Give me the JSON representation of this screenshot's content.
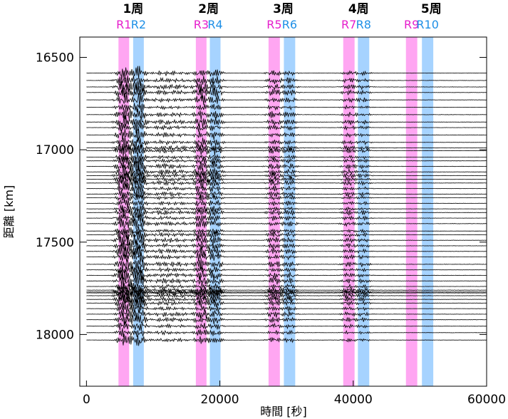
{
  "chart_data": {
    "type": "line",
    "title": "",
    "xlabel": "時間 [秒]",
    "ylabel": "距離 [km]",
    "xlim": [
      -1000,
      60000
    ],
    "ylim": [
      18280,
      16390
    ],
    "x_ticks": [
      0,
      20000,
      40000,
      60000
    ],
    "y_ticks": [
      16500,
      17000,
      17500,
      18000
    ],
    "y_inverted": true,
    "grid": false,
    "legend": "none",
    "orbit_labels": [
      {
        "label": "1周",
        "x": 7000
      },
      {
        "label": "2周",
        "x": 18300
      },
      {
        "label": "3周",
        "x": 29500
      },
      {
        "label": "4周",
        "x": 40800
      },
      {
        "label": "5周",
        "x": 51700
      }
    ],
    "bands": [
      {
        "label": "R1",
        "x_start": 4800,
        "x_end": 6400,
        "color": "#ff88ee"
      },
      {
        "label": "R2",
        "x_start": 7000,
        "x_end": 8600,
        "color": "#88c4ff"
      },
      {
        "label": "R3",
        "x_start": 16400,
        "x_end": 18000,
        "color": "#ff88ee"
      },
      {
        "label": "R4",
        "x_start": 18500,
        "x_end": 20100,
        "color": "#88c4ff"
      },
      {
        "label": "R5",
        "x_start": 27300,
        "x_end": 29000,
        "color": "#ff88ee"
      },
      {
        "label": "R6",
        "x_start": 29600,
        "x_end": 31300,
        "color": "#88c4ff"
      },
      {
        "label": "R7",
        "x_start": 38500,
        "x_end": 40200,
        "color": "#ff88ee"
      },
      {
        "label": "R8",
        "x_start": 40700,
        "x_end": 42400,
        "color": "#88c4ff"
      },
      {
        "label": "R9",
        "x_start": 47900,
        "x_end": 49600,
        "color": "#ff88ee"
      },
      {
        "label": "R10",
        "x_start": 50300,
        "x_end": 52000,
        "color": "#88c4ff"
      }
    ],
    "trace_x_range": [
      0,
      60000
    ],
    "trace_distances": [
      16585,
      16625,
      16660,
      16690,
      16730,
      16770,
      16810,
      16850,
      16880,
      16920,
      16960,
      16990,
      17005,
      17040,
      17060,
      17090,
      17120,
      17140,
      17160,
      17180,
      17210,
      17240,
      17260,
      17290,
      17320,
      17340,
      17370,
      17400,
      17440,
      17460,
      17490,
      17520,
      17550,
      17580,
      17620,
      17650,
      17680,
      17710,
      17740,
      17760,
      17770,
      17775,
      17790,
      17810,
      17830,
      17860,
      17890,
      17920,
      17955,
      17990,
      18030
    ]
  }
}
